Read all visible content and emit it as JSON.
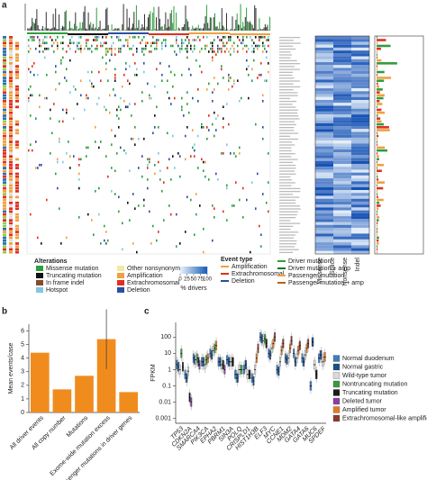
{
  "panel_labels": [
    "a",
    "b",
    "c"
  ],
  "legend_a": {
    "alterations_title": "Alterations",
    "alterations": [
      {
        "label": "Missense mutation",
        "color": "#2e9e3e"
      },
      {
        "label": "Truncating mutation",
        "color": "#111111"
      },
      {
        "label": "In frame indel",
        "color": "#8a4b2a"
      },
      {
        "label": "Hotspot",
        "color": "#7ec8e3"
      },
      {
        "label": "Other nonsynonymous",
        "color": "#f6e7a6"
      },
      {
        "label": "Amplification",
        "color": "#f0a040"
      },
      {
        "label": "Extrachromosomal",
        "color": "#e03020"
      },
      {
        "label": "Deletion",
        "color": "#2a4fa0"
      }
    ],
    "scale_title": "% drivers",
    "scale_lim": [
      0,
      100
    ],
    "scale_ticks": [
      0,
      25,
      50,
      75,
      100
    ],
    "event_title": "Event type",
    "events": [
      {
        "label": "Amplification",
        "color": "#f0a040"
      },
      {
        "label": "Extrachromosomal",
        "color": "#e03020"
      },
      {
        "label": "Deletion",
        "color": "#2a4fa0"
      },
      {
        "label": "Driver mutation",
        "color": "#2e9e3e"
      },
      {
        "label": "Driver mutation + amp",
        "color": "#1f6f2a"
      },
      {
        "label": "Passenger mutation",
        "color": "#f0a040"
      },
      {
        "label": "Passenger mutation + amp",
        "color": "#c06010"
      }
    ],
    "column_labels": [
      "Missense",
      "Splice",
      "Nonsense",
      "Indel"
    ]
  },
  "chart_data": [
    {
      "type": "bar",
      "ylabel": "Mean events/case",
      "categories": [
        "All driver events",
        "All copy number",
        "Mutations",
        "Exome-wide mutation excess",
        "Passenger mutations in driver genes"
      ],
      "values": [
        4.4,
        1.7,
        2.7,
        5.4,
        1.5
      ],
      "errors": [
        null,
        null,
        null,
        2.2,
        null
      ],
      "color": "#f08c1e",
      "ylim": [
        0,
        6.5
      ],
      "yticks": [
        0,
        1,
        2,
        3,
        4,
        5,
        6
      ]
    },
    {
      "type": "box",
      "ylabel": "FPKM",
      "log_scale": true,
      "ylim": [
        0.0005,
        800
      ],
      "yticks": [
        0.001,
        0.01,
        0.1,
        1,
        10,
        100
      ],
      "categories": [
        "TP53",
        "CDKN2A",
        "SMARCA4",
        "PIK3CA",
        "EPHA2",
        "PBRM1",
        "SIN3A",
        "POLQ",
        "CRISPLD1",
        "HIST1H3B",
        "ELF3",
        "MYC",
        "CCNE1",
        "MDM2",
        "GATA4",
        "GATA6",
        "MUC6",
        "SPDEF"
      ],
      "series": [
        {
          "name": "Normal duodenum",
          "color": "#3d7fc0",
          "values": [
            2,
            0.5,
            5,
            3,
            10,
            3,
            4,
            0.5,
            1,
            0.3,
            100,
            10,
            1,
            5,
            10,
            5,
            0.1,
            5
          ]
        },
        {
          "name": "Normal gastric",
          "color": "#1b4f86",
          "values": [
            1.5,
            0.3,
            4,
            3,
            8,
            3,
            3,
            0.3,
            2,
            0.2,
            80,
            8,
            0.8,
            4,
            3,
            3,
            50,
            8
          ]
        },
        {
          "name": "Wild-type tumor",
          "color": "#d9d9d9",
          "values": [
            1,
            0.8,
            4,
            2,
            15,
            2,
            3,
            1,
            0.5,
            1,
            60,
            20,
            3,
            5,
            5,
            8,
            2,
            3
          ]
        },
        {
          "name": "Nontruncating mutation",
          "color": "#3a9a3a",
          "values": [
            10,
            null,
            5,
            4,
            20,
            null,
            null,
            1,
            null,
            null,
            80,
            null,
            null,
            null,
            null,
            null,
            null,
            null
          ]
        },
        {
          "name": "Truncating mutation",
          "color": "#1a1a1a",
          "values": [
            1.5,
            0.02,
            3,
            null,
            null,
            2,
            3,
            null,
            0.5,
            null,
            40,
            null,
            null,
            null,
            null,
            null,
            0.5,
            null
          ]
        },
        {
          "name": "Deleted tumor",
          "color": "#8a3fa0",
          "values": [
            null,
            0.01,
            2,
            null,
            null,
            1,
            null,
            null,
            null,
            null,
            null,
            null,
            null,
            null,
            null,
            null,
            null,
            null
          ]
        },
        {
          "name": "Amplified tumor",
          "color": "#e07b28",
          "values": [
            null,
            null,
            null,
            5,
            30,
            null,
            null,
            null,
            null,
            5,
            null,
            40,
            15,
            20,
            15,
            20,
            null,
            6
          ]
        },
        {
          "name": "Extrachromosomal-like amplified tumor",
          "color": "#8b3a2b",
          "values": [
            null,
            null,
            null,
            null,
            null,
            null,
            null,
            null,
            null,
            20,
            null,
            100,
            40,
            60,
            30,
            40,
            null,
            null
          ]
        }
      ]
    }
  ]
}
